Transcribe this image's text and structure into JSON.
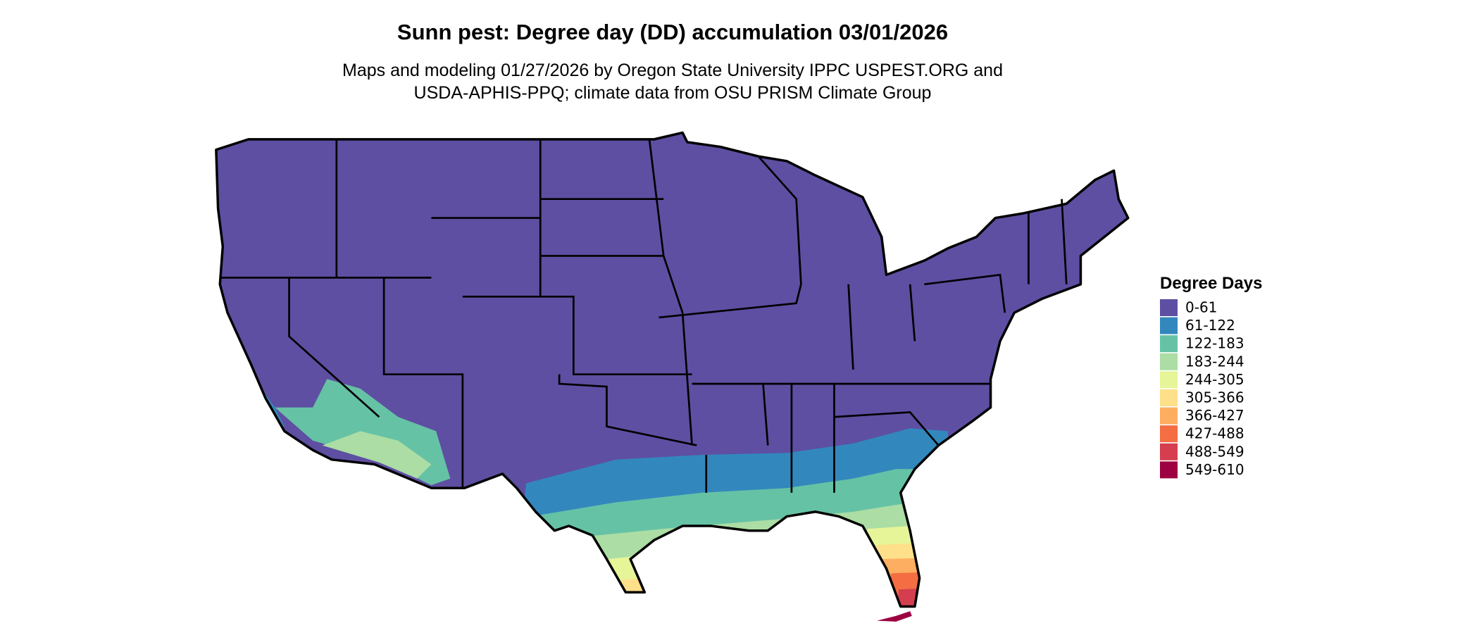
{
  "header": {
    "title": "Sunn pest: Degree day (DD) accumulation 03/01/2026",
    "subtitle": [
      "Maps and modeling 01/27/2026 by Oregon State University IPPC USPEST.ORG and",
      "USDA-APHIS-PPQ; climate data from OSU PRISM Climate Group"
    ]
  },
  "legend": {
    "title": "Degree Days",
    "items": [
      {
        "label": "0-61",
        "color": "#5e4fa2"
      },
      {
        "label": "61-122",
        "color": "#3288bd"
      },
      {
        "label": "122-183",
        "color": "#66c2a5"
      },
      {
        "label": "183-244",
        "color": "#abdda4"
      },
      {
        "label": "244-305",
        "color": "#e6f598"
      },
      {
        "label": "305-366",
        "color": "#fee08b"
      },
      {
        "label": "366-427",
        "color": "#fdae61"
      },
      {
        "label": "427-488",
        "color": "#f46d43"
      },
      {
        "label": "488-549",
        "color": "#d53e4f"
      },
      {
        "label": "549-610",
        "color": "#9e0142"
      }
    ]
  }
}
